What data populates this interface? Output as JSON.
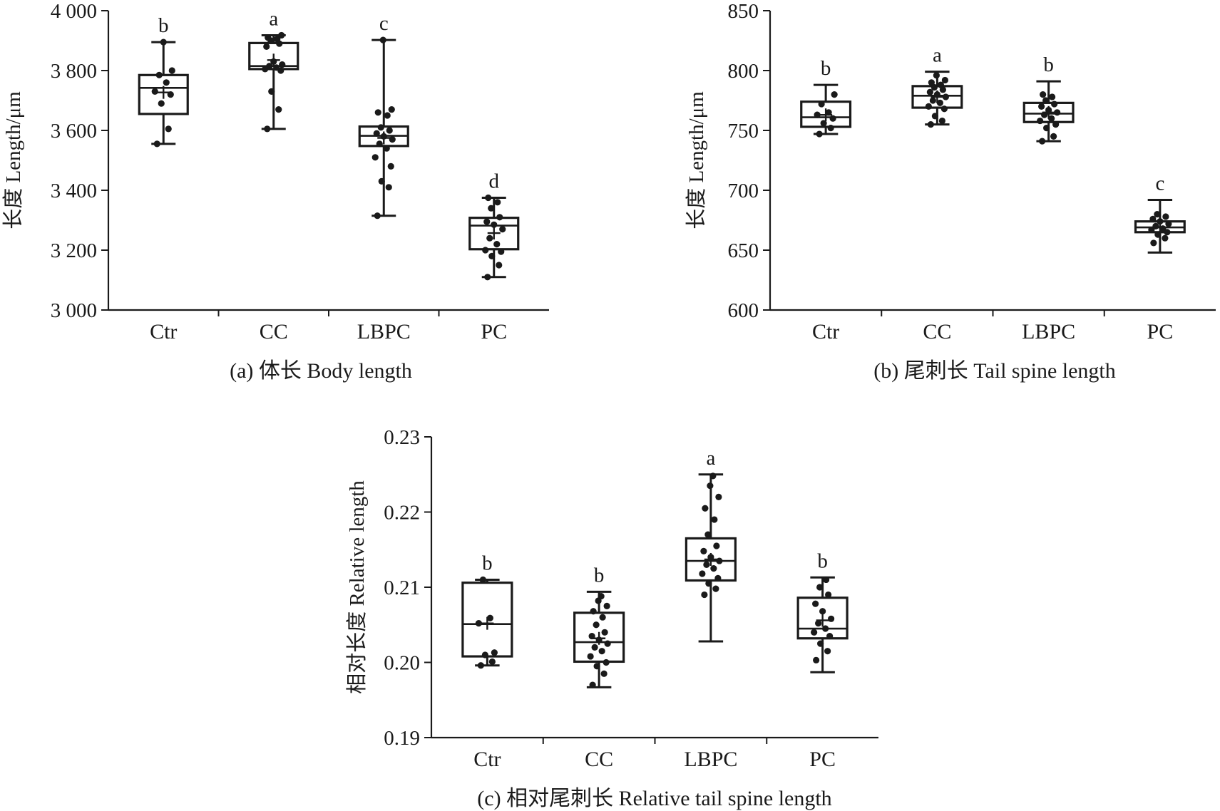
{
  "chart_data": [
    {
      "type": "box",
      "caption": "(a) 体长 Body length",
      "ylabel": "长度 Length/μm",
      "ylim": [
        3000,
        4000
      ],
      "yticks": [
        3000,
        3200,
        3400,
        3600,
        3800,
        4000
      ],
      "ytick_labels": [
        "3 000",
        "3 200",
        "3 400",
        "3 600",
        "3 800",
        "4 000"
      ],
      "categories": [
        "Ctr",
        "CC",
        "LBPC",
        "PC"
      ],
      "boxes": [
        {
          "group": "Ctr",
          "min": 3555,
          "q1": 3655,
          "median": 3742,
          "q3": 3785,
          "max": 3895,
          "mean": 3727,
          "sig": "b",
          "points": [
            3555,
            3605,
            3690,
            3720,
            3730,
            3760,
            3785,
            3800,
            3895
          ]
        },
        {
          "group": "CC",
          "min": 3605,
          "q1": 3805,
          "median": 3815,
          "q3": 3892,
          "max": 3918,
          "mean": 3835,
          "sig": "a",
          "points": [
            3605,
            3670,
            3730,
            3800,
            3805,
            3810,
            3815,
            3820,
            3830,
            3880,
            3890,
            3900,
            3905,
            3910,
            3918
          ]
        },
        {
          "group": "LBPC",
          "min": 3315,
          "q1": 3548,
          "median": 3582,
          "q3": 3613,
          "max": 3902,
          "mean": 3575,
          "sig": "c",
          "points": [
            3315,
            3410,
            3430,
            3480,
            3510,
            3540,
            3555,
            3570,
            3580,
            3590,
            3600,
            3610,
            3650,
            3660,
            3670,
            3902
          ]
        },
        {
          "group": "PC",
          "min": 3110,
          "q1": 3203,
          "median": 3282,
          "q3": 3308,
          "max": 3375,
          "mean": 3257,
          "sig": "d",
          "points": [
            3110,
            3150,
            3180,
            3195,
            3200,
            3220,
            3240,
            3270,
            3285,
            3295,
            3310,
            3340,
            3360,
            3375
          ]
        }
      ]
    },
    {
      "type": "box",
      "caption": "(b) 尾刺长 Tail spine length",
      "ylabel": "长度 Length/μm",
      "ylim": [
        600,
        850
      ],
      "yticks": [
        600,
        650,
        700,
        750,
        800,
        850
      ],
      "ytick_labels": [
        "600",
        "650",
        "700",
        "750",
        "800",
        "850"
      ],
      "categories": [
        "Ctr",
        "CC",
        "LBPC",
        "PC"
      ],
      "boxes": [
        {
          "group": "Ctr",
          "min": 747,
          "q1": 753,
          "median": 761,
          "q3": 774,
          "max": 788,
          "mean": 763,
          "sig": "b",
          "points": [
            747,
            752,
            756,
            760,
            763,
            765,
            772,
            780
          ]
        },
        {
          "group": "CC",
          "min": 755,
          "q1": 769,
          "median": 779,
          "q3": 787,
          "max": 799,
          "mean": 778,
          "sig": "a",
          "points": [
            755,
            758,
            762,
            768,
            770,
            773,
            775,
            778,
            780,
            782,
            784,
            786,
            788,
            790,
            792,
            796
          ]
        },
        {
          "group": "LBPC",
          "min": 741,
          "q1": 757,
          "median": 764,
          "q3": 773,
          "max": 791,
          "mean": 765,
          "sig": "b",
          "points": [
            741,
            745,
            752,
            755,
            758,
            760,
            763,
            765,
            767,
            770,
            772,
            775,
            778,
            780
          ]
        },
        {
          "group": "PC",
          "min": 648,
          "q1": 665,
          "median": 669,
          "q3": 674,
          "max": 692,
          "mean": 669,
          "sig": "c",
          "points": [
            656,
            660,
            663,
            665,
            667,
            668,
            670,
            672,
            674,
            676,
            678,
            680
          ]
        }
      ]
    },
    {
      "type": "box",
      "caption": "(c) 相对尾刺长 Relative tail spine length",
      "ylabel": "相对长度 Relative length",
      "ylim": [
        0.19,
        0.23
      ],
      "yticks": [
        0.19,
        0.2,
        0.21,
        0.22,
        0.23
      ],
      "ytick_labels": [
        "0.19",
        "0.20",
        "0.21",
        "0.22",
        "0.23"
      ],
      "categories": [
        "Ctr",
        "CC",
        "LBPC",
        "PC"
      ],
      "boxes": [
        {
          "group": "Ctr",
          "min": 0.1996,
          "q1": 0.2008,
          "median": 0.2051,
          "q3": 0.2106,
          "max": 0.211,
          "mean": 0.2052,
          "sig": "b",
          "points": [
            0.1996,
            0.2001,
            0.201,
            0.2013,
            0.2052,
            0.2059,
            0.211
          ]
        },
        {
          "group": "CC",
          "min": 0.1967,
          "q1": 0.2001,
          "median": 0.2027,
          "q3": 0.2066,
          "max": 0.2094,
          "mean": 0.2032,
          "sig": "b",
          "points": [
            0.197,
            0.1985,
            0.1995,
            0.2,
            0.2008,
            0.2015,
            0.202,
            0.2025,
            0.203,
            0.2035,
            0.204,
            0.205,
            0.206,
            0.2068,
            0.2075,
            0.2082,
            0.2088
          ]
        },
        {
          "group": "LBPC",
          "min": 0.2028,
          "q1": 0.2109,
          "median": 0.2135,
          "q3": 0.2165,
          "max": 0.225,
          "mean": 0.2137,
          "sig": "a",
          "points": [
            0.209,
            0.2098,
            0.2105,
            0.2112,
            0.2118,
            0.2125,
            0.213,
            0.2135,
            0.214,
            0.2148,
            0.2155,
            0.217,
            0.219,
            0.2205,
            0.222,
            0.2235,
            0.2248
          ]
        },
        {
          "group": "PC",
          "min": 0.1987,
          "q1": 0.2032,
          "median": 0.2045,
          "q3": 0.2086,
          "max": 0.2113,
          "mean": 0.2056,
          "sig": "b",
          "points": [
            0.2003,
            0.2015,
            0.2025,
            0.2035,
            0.204,
            0.2045,
            0.2052,
            0.2058,
            0.2068,
            0.2078,
            0.209,
            0.21,
            0.211
          ]
        }
      ]
    }
  ]
}
